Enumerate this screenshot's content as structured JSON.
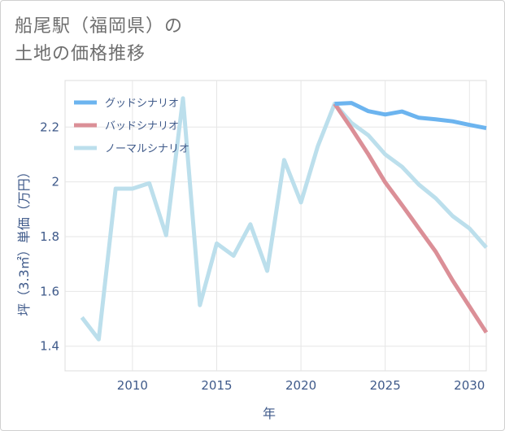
{
  "title": {
    "line1": "船尾駅（福岡県）の",
    "line2": "土地の価格推移"
  },
  "chart_data": {
    "type": "line",
    "title": "船尾駅（福岡県）の土地の価格推移",
    "xlabel": "年",
    "ylabel": "坪（3.3㎡）単価（万円）",
    "xlim": [
      2006,
      2031
    ],
    "ylim": [
      1.31,
      2.37
    ],
    "xticks": [
      2010,
      2015,
      2020,
      2025,
      2030
    ],
    "yticks": [
      1.4,
      1.6,
      1.8,
      2.0,
      2.2
    ],
    "ytick_labels": [
      "1.4",
      "1.6",
      "1.8",
      "2",
      "2.2"
    ],
    "grid": true,
    "legend_position": "top-left",
    "series": [
      {
        "name": "グッドシナリオ",
        "color": "#6cb4ef",
        "x": [
          2022,
          2023,
          2024,
          2025,
          2026,
          2027,
          2028,
          2029,
          2030,
          2031
        ],
        "values": [
          2.285,
          2.288,
          2.258,
          2.246,
          2.257,
          2.234,
          2.228,
          2.221,
          2.208,
          2.196
        ]
      },
      {
        "name": "バッドシナリオ",
        "color": "#db8f97",
        "x": [
          2022,
          2023,
          2024,
          2025,
          2026,
          2027,
          2028,
          2029,
          2030,
          2031
        ],
        "values": [
          2.285,
          2.195,
          2.1,
          1.998,
          1.915,
          1.83,
          1.745,
          1.64,
          1.545,
          1.45
        ]
      },
      {
        "name": "ノーマルシナリオ",
        "color": "#bcdfec",
        "x": [
          2007,
          2008,
          2009,
          2010,
          2011,
          2012,
          2013,
          2014,
          2015,
          2016,
          2017,
          2018,
          2019,
          2020,
          2021,
          2022,
          2023,
          2024,
          2025,
          2026,
          2027,
          2028,
          2029,
          2030,
          2031
        ],
        "values": [
          1.505,
          1.425,
          1.975,
          1.975,
          1.995,
          1.805,
          2.305,
          1.55,
          1.775,
          1.73,
          1.845,
          1.675,
          2.08,
          1.925,
          2.13,
          2.285,
          2.215,
          2.17,
          2.1,
          2.055,
          1.99,
          1.94,
          1.875,
          1.83,
          1.76
        ]
      }
    ]
  }
}
